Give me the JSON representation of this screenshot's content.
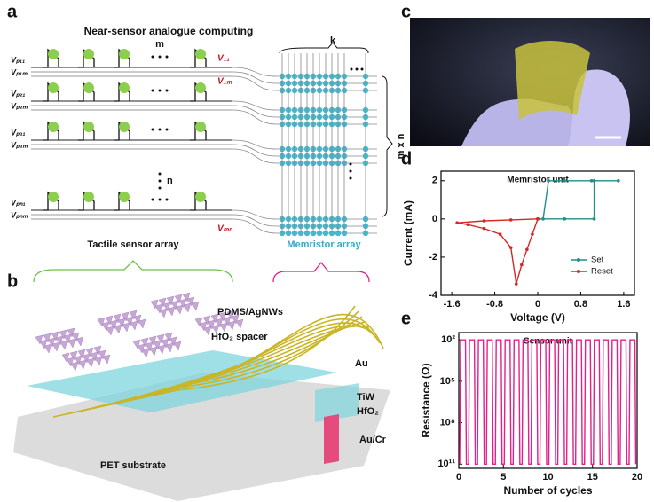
{
  "figure": {
    "labels": [
      "a",
      "b",
      "c",
      "d",
      "e"
    ],
    "a": {
      "title": "Near-sensor analogue computing",
      "m": "m",
      "k": "k",
      "n": "n",
      "mxn": "m x n",
      "left_labels": [
        "Vₚ₁₁",
        "Vₚ₁ₘ",
        "Vₚ₂₁",
        "Vₚ₂ₘ",
        "Vₚ₃₁",
        "Vₚ₃ₘ",
        "Vₚₙ₁",
        "Vₚₙₘ"
      ],
      "right_labels": [
        "V₁₁",
        "V₁ₘ",
        "Vₘₙ"
      ],
      "tactile": "Tactile sensor array",
      "memristor": "Memristor array"
    },
    "b": {
      "layers": [
        "PDMS/AgNWs",
        "HfO₂ spacer",
        "Au",
        "TiW",
        "HfO₂",
        "Au/Cr",
        "PET substrate"
      ]
    }
  },
  "chart_data": [
    {
      "type": "line",
      "title": "Memristor unit",
      "xlabel": "Voltage (V)",
      "ylabel": "Current (mA)",
      "xlim": [
        -1.8,
        1.8
      ],
      "ylim": [
        -4,
        2.5
      ],
      "xticks": [
        -1.6,
        -0.8,
        0,
        0.8,
        1.6
      ],
      "yticks": [
        -4,
        -2,
        0,
        2
      ],
      "legend": "lower right",
      "series": [
        {
          "name": "Set",
          "color": "#1f8f8a",
          "x": [
            0,
            0.1,
            0.2,
            0.5,
            1.0,
            1.5,
            1.05,
            1.05,
            0.5,
            0
          ],
          "values": [
            0,
            0,
            2,
            2,
            2,
            2,
            2,
            0,
            0,
            0
          ]
        },
        {
          "name": "Reset",
          "color": "#d62728",
          "x": [
            0,
            -0.1,
            -0.2,
            -0.3,
            -0.4,
            -0.5,
            -0.7,
            -1.0,
            -1.3,
            -1.5,
            -1.0,
            -0.5,
            0
          ],
          "values": [
            0,
            -0.8,
            -1.6,
            -2.4,
            -3.4,
            -1.5,
            -0.8,
            -0.5,
            -0.3,
            -0.2,
            -0.1,
            -0.05,
            0
          ]
        }
      ]
    },
    {
      "type": "line",
      "title": "Sensor unit",
      "xlabel": "Number of cycles",
      "ylabel": "Resistance (Ω)",
      "log": true,
      "xlim": [
        0,
        20
      ],
      "ylim": [
        200000000000,
        30
      ],
      "xticks": [
        0,
        5,
        10,
        15,
        20
      ],
      "yticks": [
        {
          "value": 100,
          "label": "10²"
        },
        {
          "value": 100000,
          "label": "10⁵"
        },
        {
          "value": 100000000,
          "label": "10⁸"
        },
        {
          "value": 100000000000,
          "label": "10¹¹"
        }
      ],
      "series": [
        {
          "name": "Sensor",
          "color": "#e0218a",
          "x": [
            0.1,
            0.2,
            0.75,
            0.85,
            1.1,
            1.2,
            1.75,
            1.85,
            2.1,
            2.2,
            2.75,
            2.85,
            3.1,
            3.2,
            3.75,
            3.85,
            4.1,
            4.2,
            4.75,
            4.85,
            5.1,
            5.2,
            5.75,
            5.85,
            6.1,
            6.2,
            6.75,
            6.85,
            7.1,
            7.2,
            7.75,
            7.85,
            8.1,
            8.2,
            8.75,
            8.85,
            9.1,
            9.2,
            9.75,
            9.85,
            10.1,
            10.2,
            10.75,
            10.85,
            11.1,
            11.2,
            11.75,
            11.85,
            12.1,
            12.2,
            12.75,
            12.85,
            13.1,
            13.2,
            13.75,
            13.85,
            14.1,
            14.2,
            14.75,
            14.85,
            15.1,
            15.2,
            15.75,
            15.85,
            16.1,
            16.2,
            16.75,
            16.85,
            17.1,
            17.2,
            17.75,
            17.85,
            18.1,
            18.2,
            18.75,
            18.85,
            19.1,
            19.2,
            19.75,
            19.85
          ],
          "values": [
            100000000000,
            100,
            100,
            100000000000,
            100000000000,
            100,
            100,
            100000000000,
            100000000000,
            100,
            100,
            100000000000,
            100000000000,
            100,
            100,
            100000000000,
            100000000000,
            100,
            100,
            100000000000,
            100000000000,
            100,
            100,
            100000000000,
            100000000000,
            100,
            100,
            100000000000,
            100000000000,
            100,
            100,
            100000000000,
            100000000000,
            100,
            100,
            100000000000,
            100000000000,
            100,
            100,
            100000000000,
            100000000000,
            100,
            100,
            100000000000,
            100000000000,
            100,
            100,
            100000000000,
            100000000000,
            100,
            100,
            100000000000,
            100000000000,
            100,
            100,
            100000000000,
            100000000000,
            100,
            100,
            100000000000,
            100000000000,
            100,
            100,
            100000000000,
            100000000000,
            100,
            100,
            100000000000,
            100000000000,
            100,
            100,
            100000000000,
            100000000000,
            100,
            100,
            100000000000,
            100000000000,
            100,
            100,
            100000000000
          ]
        }
      ]
    }
  ]
}
